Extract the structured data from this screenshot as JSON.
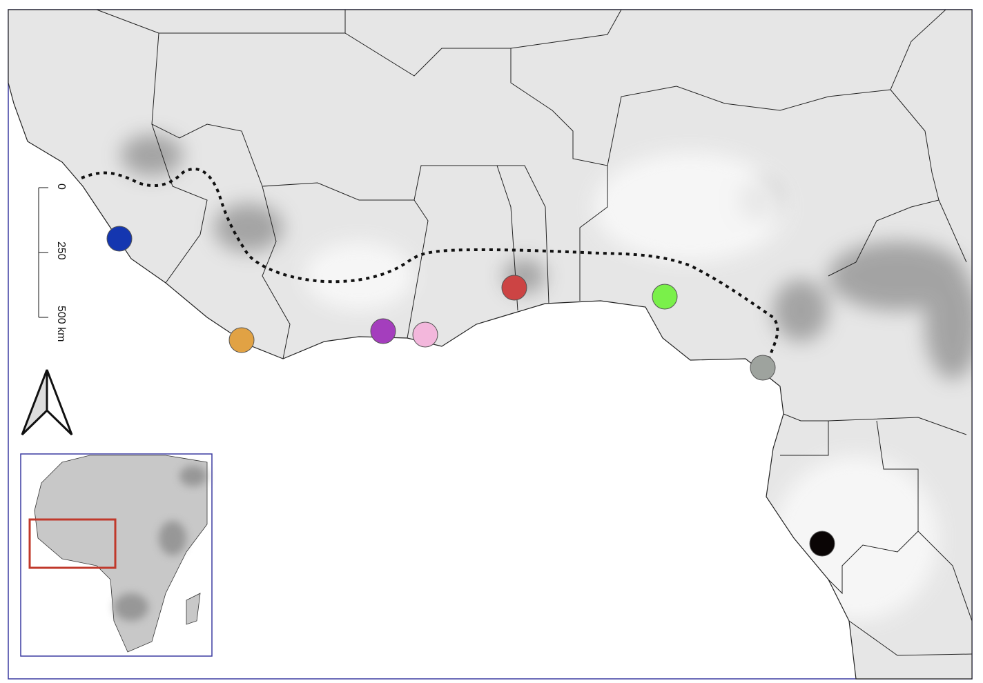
{
  "scale_bar": {
    "labels": [
      "0",
      "250",
      "500 km"
    ]
  }
}
